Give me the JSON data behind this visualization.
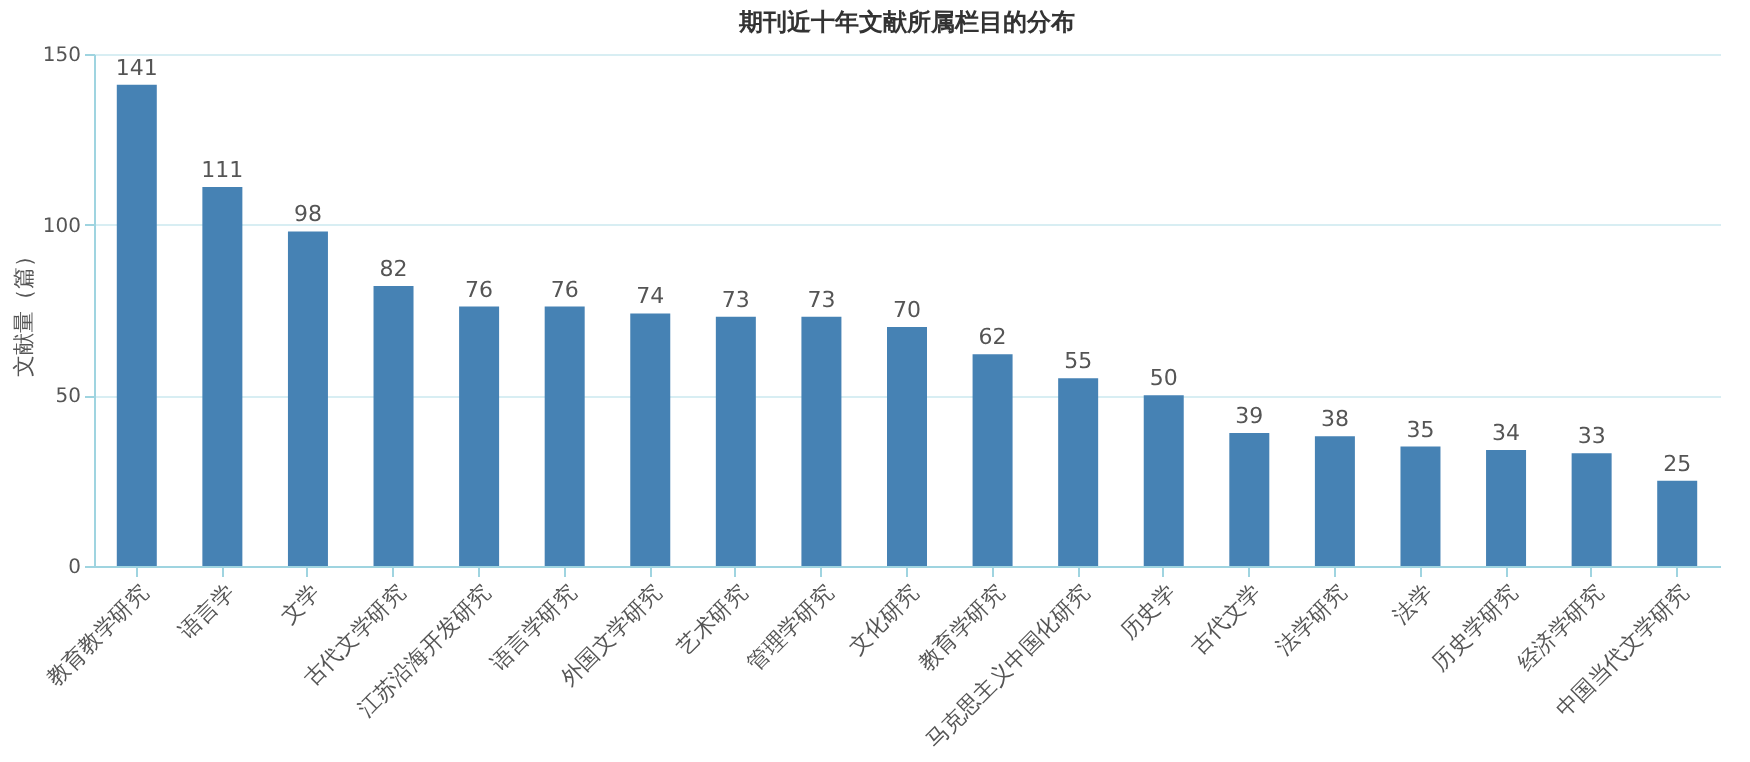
{
  "chart_data": {
    "type": "bar",
    "title": "期刊近十年文献所属栏目的分布",
    "ylabel": "文献量（篇）",
    "categories": [
      "教育教学研究",
      "语言学",
      "文学",
      "古代文学研究",
      "江苏沿海开发研究",
      "语言学研究",
      "外国文学研究",
      "艺术研究",
      "管理学研究",
      "文化研究",
      "教育学研究",
      "马克思主义中国化研究",
      "历史学",
      "古代文学",
      "法学研究",
      "法学",
      "历史学研究",
      "经济学研究",
      "中国当代文学研究"
    ],
    "values": [
      141,
      111,
      98,
      82,
      76,
      76,
      74,
      73,
      73,
      70,
      62,
      55,
      50,
      39,
      38,
      35,
      34,
      33,
      25
    ],
    "color": "#4682b4",
    "ylim": [
      0,
      150
    ],
    "yticks": [
      0,
      50,
      100,
      150
    ],
    "grid": "y",
    "data_labels": true
  }
}
